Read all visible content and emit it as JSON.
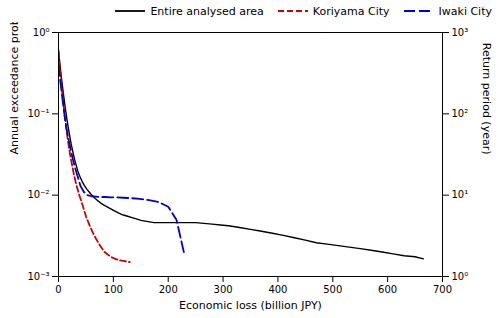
{
  "chart_data": {
    "type": "line",
    "xlabel": "Economic loss (billion JPY)",
    "ylabel": "Annual exceedance probability",
    "y2label": "Return period (year)",
    "log": "y",
    "grid": false,
    "legend": "upper right",
    "xlim": [
      0,
      700
    ],
    "xticks": [
      0,
      100,
      200,
      300,
      400,
      500,
      600,
      700
    ],
    "ylim": [
      0.001,
      1
    ],
    "yticks": [
      {
        "value": 0.001,
        "label": "10⁻³"
      },
      {
        "value": 0.01,
        "label": "10⁻²"
      },
      {
        "value": 0.1,
        "label": "10⁻¹"
      },
      {
        "value": 1,
        "label": "10⁰"
      }
    ],
    "y2lim": [
      1,
      1000
    ],
    "y2ticks": [
      {
        "value": 1,
        "label": "10⁰"
      },
      {
        "value": 10,
        "label": "10¹"
      },
      {
        "value": 100,
        "label": "10²"
      },
      {
        "value": 1000,
        "label": "10³"
      }
    ],
    "series": [
      {
        "name": "Entire analysed area",
        "color": "#000000",
        "line_style": "solid",
        "x": [
          0,
          1,
          2,
          3,
          4,
          5,
          6,
          7,
          8,
          9,
          10,
          11,
          12,
          13,
          14,
          15,
          17,
          19,
          21,
          23,
          25,
          28,
          31,
          35,
          39,
          43,
          47,
          52,
          57,
          62,
          67,
          72,
          77,
          82,
          87,
          92,
          97,
          102,
          110,
          118,
          126,
          134,
          142,
          150,
          158,
          166,
          174,
          182,
          190,
          200,
          210,
          220,
          230,
          240,
          250,
          265,
          280,
          295,
          310,
          330,
          350,
          370,
          390,
          410,
          430,
          450,
          470,
          490,
          510,
          530,
          550,
          570,
          590,
          610,
          630,
          650,
          665
        ],
        "values": [
          0.62,
          0.52,
          0.44,
          0.38,
          0.33,
          0.29,
          0.255,
          0.225,
          0.198,
          0.175,
          0.155,
          0.138,
          0.123,
          0.11,
          0.099,
          0.089,
          0.073,
          0.061,
          0.051,
          0.043,
          0.037,
          0.03,
          0.025,
          0.02,
          0.017,
          0.0148,
          0.0132,
          0.0118,
          0.0107,
          0.0098,
          0.0091,
          0.0085,
          0.008,
          0.0076,
          0.0073,
          0.007,
          0.0067,
          0.0064,
          0.006,
          0.0057,
          0.0055,
          0.0053,
          0.0051,
          0.0049,
          0.0048,
          0.0047,
          0.0046,
          0.0046,
          0.0046,
          0.0046,
          0.0046,
          0.0046,
          0.0046,
          0.0046,
          0.0046,
          0.0045,
          0.0044,
          0.0043,
          0.0042,
          0.004,
          0.0038,
          0.0036,
          0.0034,
          0.0032,
          0.003,
          0.0028,
          0.0026,
          0.0025,
          0.0024,
          0.0023,
          0.0022,
          0.0021,
          0.002,
          0.0019,
          0.0018,
          0.00175,
          0.00165
        ]
      },
      {
        "name": "Koriyama City",
        "color": "#cc0000",
        "line_style": "dashed",
        "x": [
          0,
          1,
          2,
          3,
          4,
          5,
          6,
          7,
          8,
          10,
          12,
          14,
          16,
          18,
          21,
          24,
          28,
          33,
          38,
          44,
          50,
          57,
          65,
          74,
          84,
          95,
          108,
          120,
          130
        ],
        "values": [
          0.57,
          0.48,
          0.4,
          0.34,
          0.29,
          0.245,
          0.21,
          0.18,
          0.155,
          0.115,
          0.088,
          0.068,
          0.054,
          0.043,
          0.032,
          0.025,
          0.018,
          0.013,
          0.01,
          0.0075,
          0.0055,
          0.0042,
          0.0032,
          0.0025,
          0.002,
          0.00175,
          0.0016,
          0.00155,
          0.0015
        ]
      },
      {
        "name": "Iwaki City",
        "color": "#0000cc",
        "line_style": "longdashed",
        "x": [
          0,
          2,
          4,
          6,
          8,
          10,
          12,
          15,
          18,
          22,
          26,
          30,
          35,
          40,
          46,
          53,
          60,
          68,
          76,
          85,
          95,
          105,
          118,
          132,
          148,
          165,
          183,
          200,
          215,
          230
        ],
        "values": [
          0.4,
          0.3,
          0.23,
          0.178,
          0.138,
          0.108,
          0.085,
          0.064,
          0.05,
          0.037,
          0.028,
          0.022,
          0.017,
          0.013,
          0.011,
          0.01,
          0.0097,
          0.0096,
          0.0095,
          0.0095,
          0.0094,
          0.0094,
          0.0093,
          0.0092,
          0.009,
          0.0087,
          0.0082,
          0.0072,
          0.005,
          0.0018
        ]
      }
    ]
  }
}
